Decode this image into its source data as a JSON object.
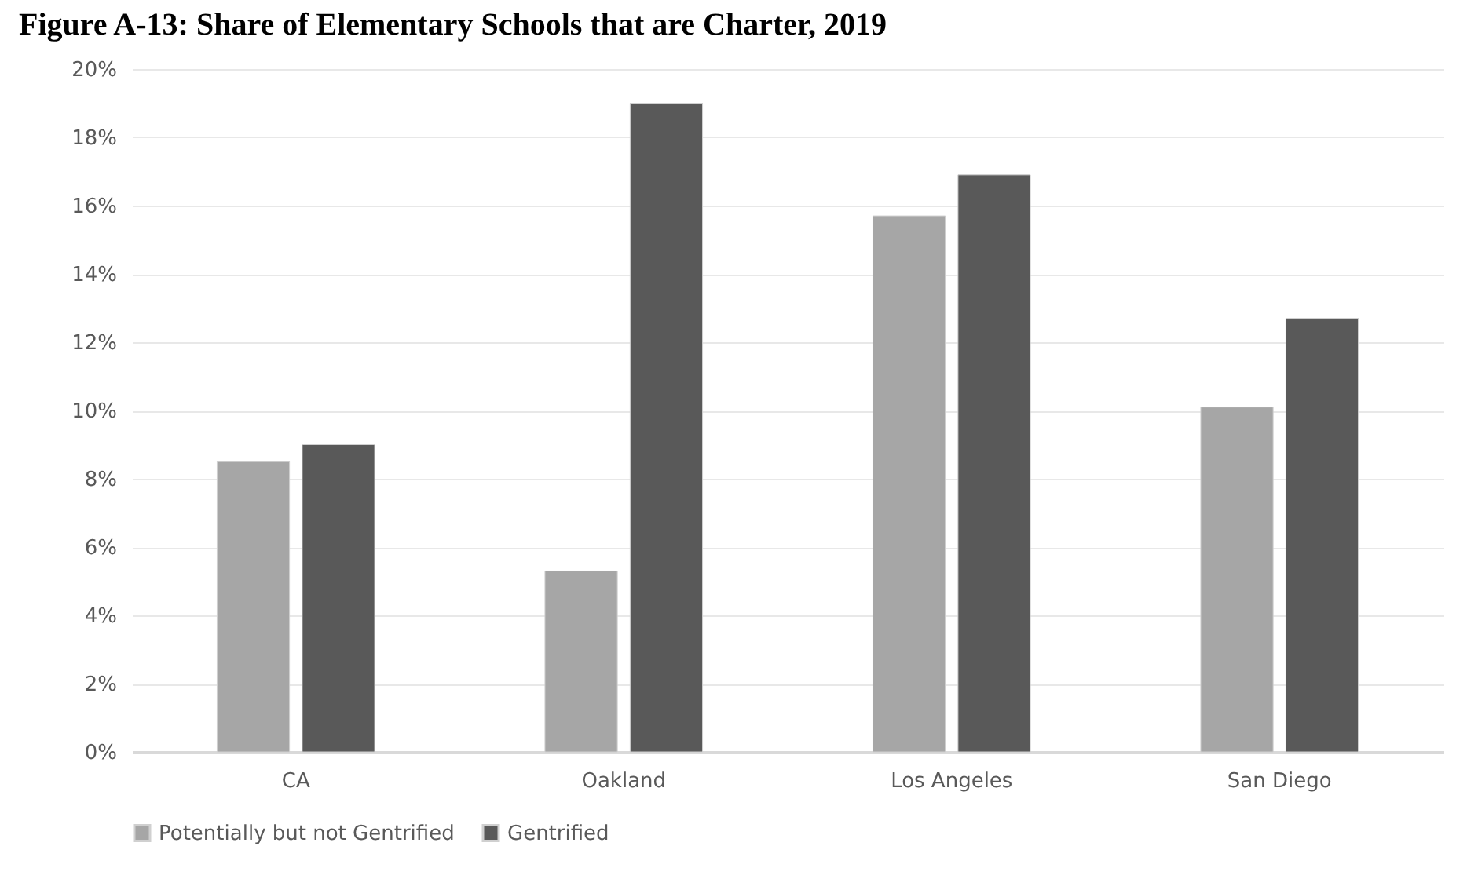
{
  "chart_data": {
    "type": "bar",
    "title": "Figure A-13: Share of Elementary Schools that are Charter, 2019",
    "categories": [
      "CA",
      "Oakland",
      "Los Angeles",
      "San Diego"
    ],
    "series": [
      {
        "name": "Potentially but not Gentrified",
        "color": "#a6a6a6",
        "values": [
          8.5,
          5.3,
          15.7,
          10.1
        ]
      },
      {
        "name": "Gentrified",
        "color": "#595959",
        "values": [
          9.0,
          19.0,
          16.9,
          12.7
        ]
      }
    ],
    "ylim": [
      0,
      20
    ],
    "yticks": [
      {
        "value": 0,
        "label": "0%"
      },
      {
        "value": 2,
        "label": "2%"
      },
      {
        "value": 4,
        "label": "4%"
      },
      {
        "value": 6,
        "label": "6%"
      },
      {
        "value": 8,
        "label": "8%"
      },
      {
        "value": 10,
        "label": "10%"
      },
      {
        "value": 12,
        "label": "12%"
      },
      {
        "value": 14,
        "label": "14%"
      },
      {
        "value": 16,
        "label": "16%"
      },
      {
        "value": 18,
        "label": "18%"
      },
      {
        "value": 20,
        "label": "20%"
      }
    ],
    "grid": "y",
    "legend": "bottom"
  }
}
